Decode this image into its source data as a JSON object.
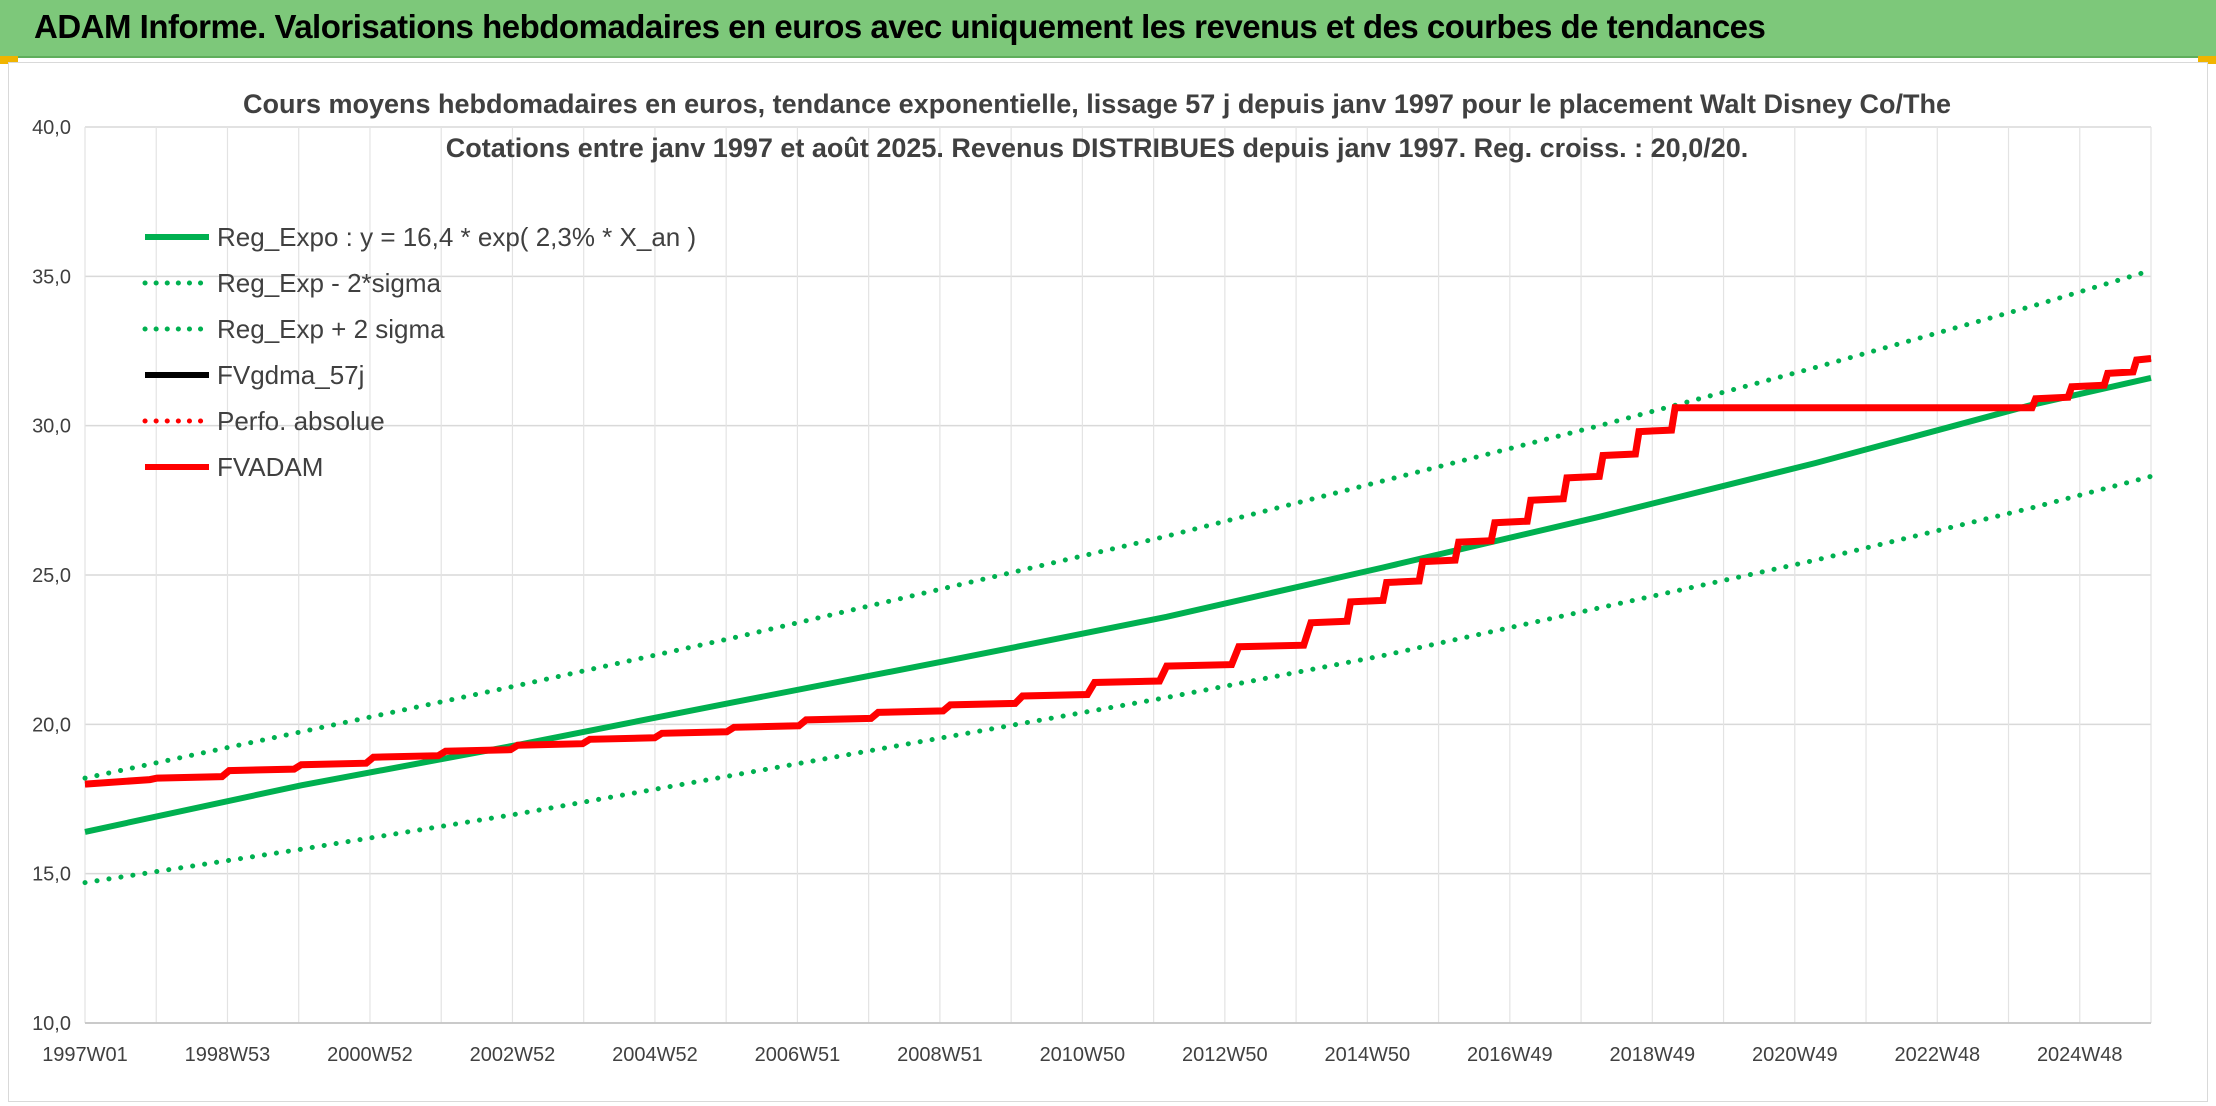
{
  "header": {
    "title": "ADAM Informe. Valorisations hebdomadaires en euros avec uniquement les revenus et des courbes de tendances"
  },
  "colors": {
    "banner": "#7dc87a",
    "trend_green": "#00b050",
    "red": "#ff0000",
    "black": "#000000",
    "accent_corner": "#f0b400"
  },
  "chart_data": {
    "type": "line",
    "title_line1": "Cours moyens hebdomadaires en euros, tendance exponentielle, lissage 57 j depuis janv 1997 pour le placement Walt Disney Co/The",
    "title_line2": "Cotations entre janv 1997 et août 2025. Revenus DISTRIBUES depuis janv 1997. Reg. croiss. : 20,0/20.",
    "x_tick_labels": [
      "1997W01",
      "1998W53",
      "2000W52",
      "2002W52",
      "2004W52",
      "2006W51",
      "2008W51",
      "2010W50",
      "2012W50",
      "2014W50",
      "2016W49",
      "2018W49",
      "2020W49",
      "2022W48",
      "2024W48"
    ],
    "x_range": [
      1997.0,
      2025.65
    ],
    "y_range": [
      10,
      40
    ],
    "y_tick_labels": [
      "10,0",
      "15,0",
      "20,0",
      "25,0",
      "30,0",
      "35,0",
      "40,0"
    ],
    "y_ticks": [
      10,
      15,
      20,
      25,
      30,
      35,
      40
    ],
    "grid": true,
    "legend_position": "top-left",
    "legend": [
      {
        "label": "Reg_Expo : y = 16,4 * exp( 2,3% *  X_an )",
        "color": "#00b050",
        "style": "solid"
      },
      {
        "label": "Reg_Exp - 2*sigma",
        "color": "#00b050",
        "style": "dotted"
      },
      {
        "label": "Reg_Exp + 2 sigma",
        "color": "#00b050",
        "style": "dotted"
      },
      {
        "label": "FVgdma_57j",
        "color": "#000000",
        "style": "solid"
      },
      {
        "label": "Perfo. absolue",
        "color": "#ff0000",
        "style": "dotted"
      },
      {
        "label": "FVADAM",
        "color": "#ff0000",
        "style": "solid"
      }
    ],
    "series": [
      {
        "name": "Reg_Expo : y = 16,4 * exp( 2,3% *  X_an )",
        "x": [
          1997,
          2000,
          2003,
          2006,
          2009,
          2012,
          2015,
          2018,
          2021,
          2024,
          2025.65
        ],
        "y": [
          16.4,
          17.96,
          19.31,
          20.74,
          22.15,
          23.6,
          25.25,
          26.95,
          28.75,
          30.7,
          31.6
        ]
      },
      {
        "name": "Reg_Exp - 2*sigma",
        "x": [
          1997,
          2000,
          2003,
          2006,
          2009,
          2012,
          2015,
          2018,
          2021,
          2024,
          2025.65
        ],
        "y": [
          14.7,
          15.82,
          17.0,
          18.3,
          19.6,
          20.9,
          22.3,
          23.9,
          25.5,
          27.25,
          28.3
        ]
      },
      {
        "name": "Reg_Exp + 2 sigma",
        "x": [
          1997,
          2000,
          2003,
          2006,
          2009,
          2012,
          2015,
          2018,
          2021,
          2024,
          2025.65
        ],
        "y": [
          18.2,
          19.75,
          21.3,
          22.9,
          24.6,
          26.3,
          28.15,
          30.0,
          31.95,
          34.0,
          35.2
        ]
      },
      {
        "name": "FVADAM",
        "x": [
          1997.0,
          1997.9,
          1998.0,
          1998.9,
          1999.0,
          1999.9,
          2000.0,
          2000.9,
          2001.0,
          2001.9,
          2002.0,
          2002.9,
          2003.0,
          2003.9,
          2004.0,
          2004.9,
          2005.0,
          2005.9,
          2006.0,
          2006.9,
          2007.0,
          2007.9,
          2008.0,
          2008.9,
          2009.0,
          2009.9,
          2010.0,
          2010.9,
          2011.0,
          2011.9,
          2012.0,
          2012.9,
          2013.0,
          2013.9,
          2014.0,
          2014.5,
          2014.55,
          2015.0,
          2015.05,
          2015.5,
          2015.55,
          2016.0,
          2016.05,
          2016.5,
          2016.55,
          2017.0,
          2017.05,
          2017.5,
          2017.55,
          2018.0,
          2018.05,
          2018.5,
          2018.55,
          2019.0,
          2019.05,
          2019.5,
          2019.55,
          2024.0,
          2024.05,
          2024.5,
          2024.55,
          2025.0,
          2025.05,
          2025.4,
          2025.45,
          2025.65
        ],
        "y": [
          18.0,
          18.15,
          18.2,
          18.25,
          18.45,
          18.5,
          18.65,
          18.7,
          18.9,
          18.95,
          19.1,
          19.15,
          19.3,
          19.35,
          19.5,
          19.55,
          19.7,
          19.75,
          19.9,
          19.95,
          20.15,
          20.2,
          20.4,
          20.45,
          20.65,
          20.7,
          20.95,
          21.0,
          21.4,
          21.45,
          21.95,
          22.0,
          22.6,
          22.65,
          23.4,
          23.45,
          24.1,
          24.15,
          24.75,
          24.8,
          25.45,
          25.5,
          26.1,
          26.15,
          26.75,
          26.8,
          27.5,
          27.55,
          28.25,
          28.3,
          29.0,
          29.05,
          29.8,
          29.85,
          30.6,
          30.6,
          30.6,
          30.6,
          30.9,
          30.95,
          31.3,
          31.35,
          31.75,
          31.8,
          32.2,
          32.25
        ]
      }
    ]
  }
}
